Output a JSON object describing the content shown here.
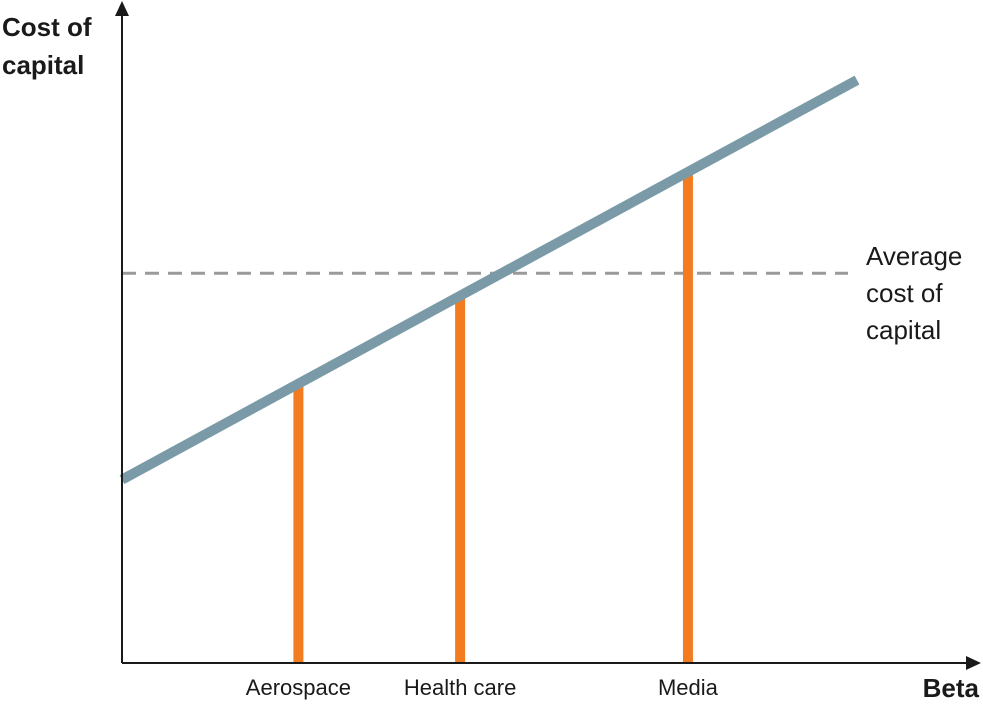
{
  "chart_data": {
    "type": "line",
    "ylabel": "Cost of\ncapital",
    "xlabel": "Beta",
    "categories": [
      "Aerospace",
      "Health care",
      "Media"
    ],
    "line": {
      "x": [
        0,
        1
      ],
      "y": [
        0.28,
        0.89
      ]
    },
    "category_beta": [
      0.24,
      0.46,
      0.77
    ],
    "average_cost_of_capital": 0.595,
    "annotation": "Average\ncost of\ncapital",
    "xlim": [
      0,
      1.18
    ],
    "ylim": [
      0,
      1.0
    ],
    "grid": false,
    "colors": {
      "line": "#7a9aa8",
      "bars": "#f47c20",
      "average": "#9a9a9a",
      "axis": "#1a1a1a"
    }
  }
}
